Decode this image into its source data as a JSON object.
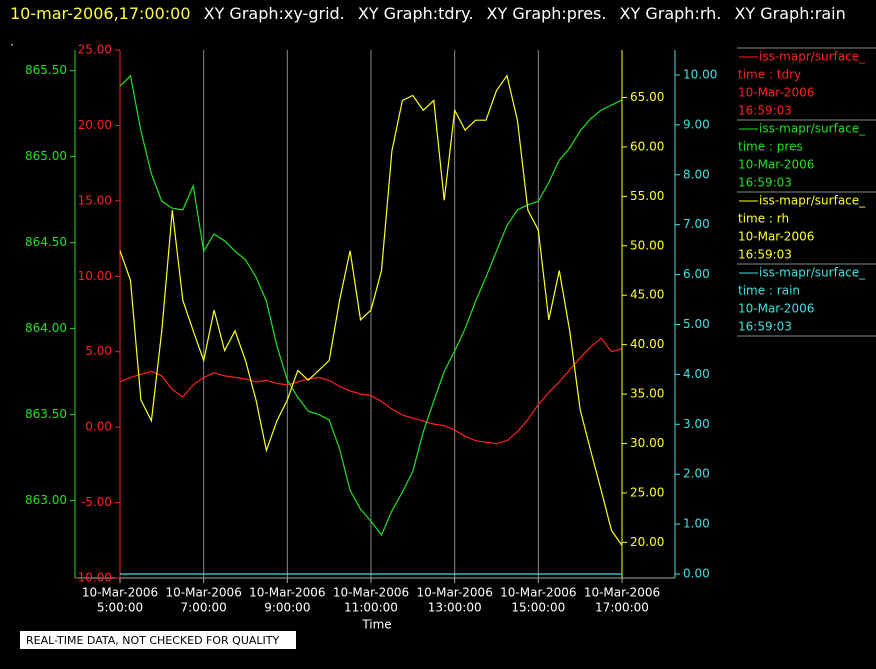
{
  "header": {
    "timestamp": "10-mar-2006,17:00:00",
    "tabs": [
      "XY Graph:xy-grid.",
      "XY Graph:tdry.",
      "XY Graph:pres.",
      "XY Graph:rh.",
      "XY Graph:rain"
    ],
    "marker": "."
  },
  "chart_data": {
    "type": "line",
    "xlabel": "Time",
    "grid": true,
    "x": [
      5,
      5.25,
      5.5,
      5.75,
      6,
      6.25,
      6.5,
      6.75,
      7,
      7.25,
      7.5,
      7.75,
      8,
      8.25,
      8.5,
      8.75,
      9,
      9.25,
      9.5,
      9.75,
      10,
      10.25,
      10.5,
      10.75,
      11,
      11.25,
      11.5,
      11.75,
      12,
      12.25,
      12.5,
      12.75,
      13,
      13.25,
      13.5,
      13.75,
      14,
      14.25,
      14.5,
      14.75,
      15,
      15.25,
      15.5,
      15.75,
      16,
      16.25,
      16.5,
      16.75,
      17
    ],
    "xlim": [
      5,
      17
    ],
    "xticks": [
      {
        "value": 5,
        "label": [
          "10-Mar-2006",
          "5:00:00"
        ]
      },
      {
        "value": 7,
        "label": [
          "10-Mar-2006",
          "7:00:00"
        ]
      },
      {
        "value": 9,
        "label": [
          "10-Mar-2006",
          "9:00:00"
        ]
      },
      {
        "value": 11,
        "label": [
          "10-Mar-2006",
          "11:00:00"
        ]
      },
      {
        "value": 13,
        "label": [
          "10-Mar-2006",
          "13:00:00"
        ]
      },
      {
        "value": 15,
        "label": [
          "10-Mar-2006",
          "15:00:00"
        ]
      },
      {
        "value": 17,
        "label": [
          "10-Mar-2006",
          "17:00:00"
        ]
      }
    ],
    "series": [
      {
        "name": "iss-mapr/surface_",
        "label": "time : tdry",
        "date": "10-Mar-2006",
        "time": "16:59:03",
        "color": "#ff2020",
        "ylim": [
          -10,
          25
        ],
        "yticks": [
          {
            "value": 25,
            "label": "25.00"
          },
          {
            "value": 20,
            "label": "20.00"
          },
          {
            "value": 15,
            "label": "15.00"
          },
          {
            "value": 10,
            "label": "10.00"
          },
          {
            "value": 5,
            "label": "5.00"
          },
          {
            "value": 0,
            "label": "0.00"
          },
          {
            "value": -5,
            "label": "-5.00"
          },
          {
            "value": -10,
            "label": "-10.00"
          }
        ],
        "values": [
          3.0,
          3.3,
          3.5,
          3.7,
          3.4,
          2.5,
          2.0,
          2.8,
          3.3,
          3.6,
          3.4,
          3.3,
          3.2,
          3.0,
          3.1,
          2.9,
          2.8,
          3.0,
          3.2,
          3.3,
          3.1,
          2.7,
          2.4,
          2.2,
          2.1,
          1.7,
          1.2,
          0.8,
          0.6,
          0.4,
          0.2,
          0.1,
          -0.2,
          -0.6,
          -0.9,
          -1.0,
          -1.1,
          -0.9,
          -0.3,
          0.5,
          1.5,
          2.3,
          3.0,
          3.8,
          4.6,
          5.3,
          5.9,
          5.0,
          5.2
        ]
      },
      {
        "name": "iss-mapr/surface_",
        "label": "time : pres",
        "date": "10-Mar-2006",
        "time": "16:59:03",
        "color": "#20e020",
        "ylim": [
          862.55,
          865.62
        ],
        "yticks": [
          {
            "value": 865.5,
            "label": "865.50"
          },
          {
            "value": 865,
            "label": "865.00"
          },
          {
            "value": 864.5,
            "label": "864.50"
          },
          {
            "value": 864,
            "label": "864.00"
          },
          {
            "value": 863.5,
            "label": "863.50"
          },
          {
            "value": 863,
            "label": "863.00"
          }
        ],
        "values": [
          865.41,
          865.47,
          865.15,
          864.9,
          864.74,
          864.7,
          864.69,
          864.83,
          864.45,
          864.55,
          864.51,
          864.45,
          864.4,
          864.3,
          864.16,
          863.9,
          863.7,
          863.6,
          863.52,
          863.5,
          863.47,
          863.3,
          863.06,
          862.95,
          862.88,
          862.8,
          862.94,
          863.05,
          863.17,
          863.4,
          863.58,
          863.75,
          863.87,
          864.0,
          864.16,
          864.3,
          864.45,
          864.6,
          864.69,
          864.72,
          864.74,
          864.85,
          864.98,
          865.05,
          865.15,
          865.22,
          865.27,
          865.3,
          865.33
        ]
      },
      {
        "name": "iss-mapr/surface_",
        "label": "time : rh",
        "date": "10-Mar-2006",
        "time": "16:59:03",
        "color": "#ffff20",
        "ylim": [
          16.4,
          69.8
        ],
        "yticks": [
          {
            "value": 65,
            "label": "65.00"
          },
          {
            "value": 60,
            "label": "60.00"
          },
          {
            "value": 55,
            "label": "55.00"
          },
          {
            "value": 50,
            "label": "50.00"
          },
          {
            "value": 45,
            "label": "45.00"
          },
          {
            "value": 40,
            "label": "40.00"
          },
          {
            "value": 35,
            "label": "35.00"
          },
          {
            "value": 30,
            "label": "30.00"
          },
          {
            "value": 25,
            "label": "25.00"
          },
          {
            "value": 20,
            "label": "20.00"
          }
        ],
        "values": [
          49.5,
          46.5,
          34.4,
          32.3,
          41.4,
          53.6,
          44.5,
          41.4,
          38.4,
          43.5,
          39.4,
          41.4,
          38.4,
          34.4,
          29.3,
          32.3,
          34.4,
          37.4,
          36.4,
          37.4,
          38.4,
          44.5,
          49.5,
          42.5,
          43.5,
          47.5,
          59.6,
          64.7,
          65.2,
          63.7,
          64.7,
          54.6,
          63.7,
          61.7,
          62.7,
          62.7,
          65.7,
          67.2,
          62.7,
          53.6,
          51.6,
          42.5,
          47.5,
          41.4,
          33.4,
          29.3,
          25.3,
          21.2,
          19.7
        ]
      },
      {
        "name": "iss-mapr/surface_",
        "label": "time : rain",
        "date": "10-Mar-2006",
        "time": "16:59:03",
        "color": "#40e0e0",
        "ylim": [
          -0.08,
          10.5
        ],
        "yticks": [
          {
            "value": 10,
            "label": "10.00"
          },
          {
            "value": 9,
            "label": "9.00"
          },
          {
            "value": 8,
            "label": "8.00"
          },
          {
            "value": 7,
            "label": "7.00"
          },
          {
            "value": 6,
            "label": "6.00"
          },
          {
            "value": 5,
            "label": "5.00"
          },
          {
            "value": 4,
            "label": "4.00"
          },
          {
            "value": 3,
            "label": "3.00"
          },
          {
            "value": 2,
            "label": "2.00"
          },
          {
            "value": 1,
            "label": "1.00"
          },
          {
            "value": 0,
            "label": "0.00"
          }
        ],
        "values": [
          0,
          0,
          0,
          0,
          0,
          0,
          0,
          0,
          0,
          0,
          0,
          0,
          0,
          0,
          0,
          0,
          0,
          0,
          0,
          0,
          0,
          0,
          0,
          0,
          0,
          0,
          0,
          0,
          0,
          0,
          0,
          0,
          0,
          0,
          0,
          0,
          0,
          0,
          0,
          0,
          0,
          0,
          0,
          0,
          0,
          0,
          0,
          0,
          0
        ]
      }
    ]
  },
  "notice": "REAL-TIME DATA, NOT CHECKED FOR QUALITY"
}
